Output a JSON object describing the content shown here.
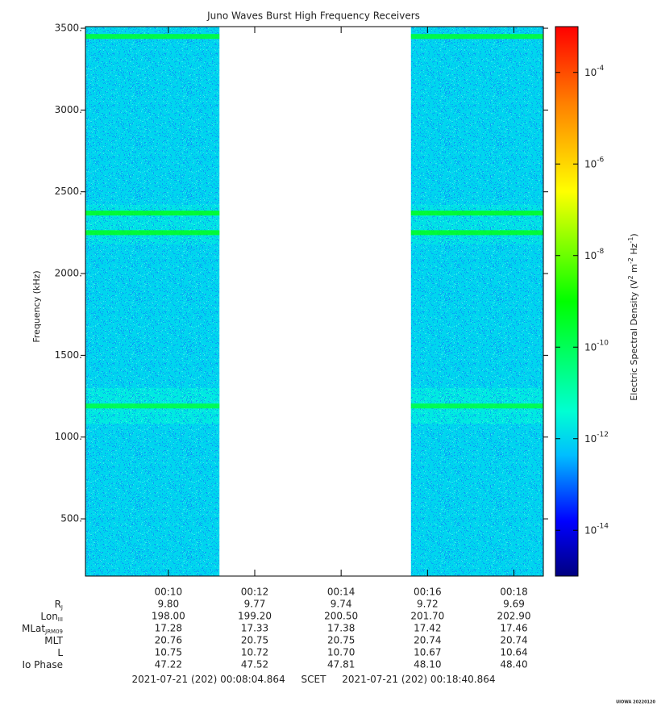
{
  "chart_data": {
    "type": "spectrogram",
    "title": "Juno Waves Burst High Frequency Receivers",
    "ylabel": "Frequency (kHz)",
    "xlim": [
      484.864,
      1120.864
    ],
    "xticks": [
      {
        "value": 600,
        "label": "00:10"
      },
      {
        "value": 720,
        "label": "00:12"
      },
      {
        "value": 840,
        "label": "00:14"
      },
      {
        "value": 960,
        "label": "00:16"
      },
      {
        "value": 1080,
        "label": "00:18"
      }
    ],
    "ylim": [
      150,
      3510
    ],
    "yticks": [
      {
        "value": 500,
        "label": "500."
      },
      {
        "value": 1000,
        "label": "1000."
      },
      {
        "value": 1500,
        "label": "1500."
      },
      {
        "value": 2000,
        "label": "2000."
      },
      {
        "value": 2500,
        "label": "2500."
      },
      {
        "value": 3000,
        "label": "3000."
      },
      {
        "value": 3500,
        "label": "3500."
      }
    ],
    "data_intervals": [
      [
        484.864,
        671
      ],
      [
        937,
        1120.864
      ]
    ],
    "background_level": 1e-12,
    "regions": [
      {
        "from": 1080,
        "to": 1300,
        "level": 3e-12
      },
      {
        "from": 2180,
        "to": 2420,
        "level": 2e-12
      }
    ],
    "bands": [
      {
        "frequency": 3450,
        "level": 3e-10
      },
      {
        "frequency": 2370,
        "level": 5e-10
      },
      {
        "frequency": 2250,
        "level": 5e-10
      },
      {
        "frequency": 1190,
        "level": 2e-10
      }
    ],
    "colorbar": {
      "zlim": [
        1e-15,
        0.001
      ],
      "log": true,
      "ticks": [
        {
          "value": 0.0001,
          "label": "10",
          "exponent": "-4"
        },
        {
          "value": 1e-06,
          "label": "10",
          "exponent": "-6"
        },
        {
          "value": 1e-08,
          "label": "10",
          "exponent": "-8"
        },
        {
          "value": 1e-10,
          "label": "10",
          "exponent": "-10"
        },
        {
          "value": 1e-12,
          "label": "10",
          "exponent": "-12"
        },
        {
          "value": 1e-14,
          "label": "10",
          "exponent": "-14"
        }
      ],
      "label": [
        {
          "text": "Electric Spectral Density (V"
        },
        {
          "sup": "2"
        },
        {
          "text": " m"
        },
        {
          "sup": "-2"
        },
        {
          "text": " Hz"
        },
        {
          "sup": "-1"
        },
        {
          "text": ")"
        }
      ]
    },
    "ephemeris": [
      {
        "name": "R",
        "sub": "J",
        "values": [
          "9.80",
          "9.77",
          "9.74",
          "9.72",
          "9.69"
        ]
      },
      {
        "name": "Lon",
        "sub": "III",
        "values": [
          "198.00",
          "199.20",
          "200.50",
          "201.70",
          "202.90"
        ]
      },
      {
        "name": "MLat",
        "sub": "JRM09",
        "values": [
          "17.28",
          "17.33",
          "17.38",
          "17.42",
          "17.46"
        ]
      },
      {
        "name": "MLT",
        "values": [
          "20.76",
          "20.75",
          "20.75",
          "20.74",
          "20.74"
        ]
      },
      {
        "name": "L",
        "values": [
          "10.75",
          "10.72",
          "10.70",
          "10.67",
          "10.64"
        ]
      },
      {
        "name": "Io Phase",
        "values": [
          "47.22",
          "47.52",
          "47.81",
          "48.10",
          "48.40"
        ]
      }
    ],
    "scet": {
      "start": "2021-07-21 (202) 00:08:04.864",
      "label": "SCET",
      "end": "2021-07-21 (202) 00:18:40.864"
    }
  },
  "footer": "UIOWA 20220120"
}
